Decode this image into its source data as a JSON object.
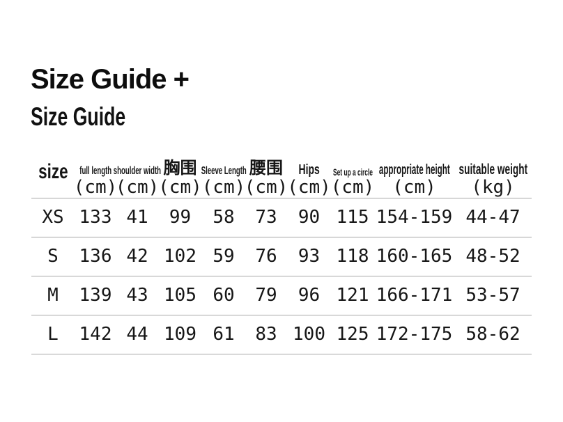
{
  "page": {
    "title": "Size Guide +",
    "subtitle": "Size Guide"
  },
  "chart_data": {
    "type": "table",
    "title": "Size Guide",
    "columns": [
      {
        "label": "size",
        "unit": ""
      },
      {
        "label": "full length",
        "unit": "(cm)"
      },
      {
        "label": "shoulder width",
        "unit": "(cm)"
      },
      {
        "label": "胸围",
        "unit": "(cm)"
      },
      {
        "label": "Sleeve Length",
        "unit": "(cm)"
      },
      {
        "label": "腰围",
        "unit": "(cm)"
      },
      {
        "label": "Hips",
        "unit": "(cm)"
      },
      {
        "label": "Set up a circle",
        "unit": "(cm)"
      },
      {
        "label": "appropriate height",
        "unit": "(cm)"
      },
      {
        "label": "suitable weight",
        "unit": "(kg)"
      }
    ],
    "rows": [
      {
        "size": "XS",
        "values": [
          "133",
          "41",
          "99",
          "58",
          "73",
          "90",
          "115",
          "154-159",
          "44-47"
        ]
      },
      {
        "size": "S",
        "values": [
          "136",
          "42",
          "102",
          "59",
          "76",
          "93",
          "118",
          "160-165",
          "48-52"
        ]
      },
      {
        "size": "M",
        "values": [
          "139",
          "43",
          "105",
          "60",
          "79",
          "96",
          "121",
          "166-171",
          "53-57"
        ]
      },
      {
        "size": "L",
        "values": [
          "142",
          "44",
          "109",
          "61",
          "83",
          "100",
          "125",
          "172-175",
          "58-62"
        ]
      }
    ]
  }
}
